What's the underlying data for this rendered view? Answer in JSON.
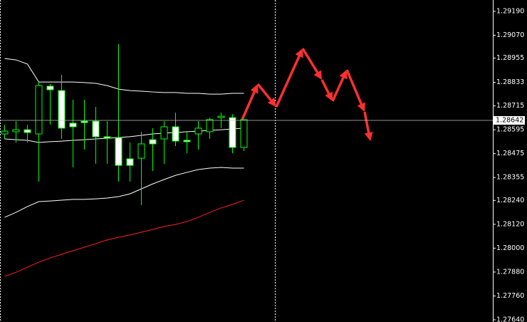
{
  "chart_data": {
    "type": "candlestick",
    "categories": [
      null,
      null,
      null,
      null,
      null,
      null,
      null,
      null,
      null,
      null,
      null,
      null,
      null,
      null,
      null,
      null,
      null,
      null,
      null,
      null,
      null,
      null
    ],
    "open": [
      1.28574,
      1.28585,
      1.28595,
      1.28574,
      1.28814,
      1.28792,
      1.28628,
      1.28638,
      1.28638,
      1.2856,
      1.28556,
      1.28449,
      1.28452,
      1.28545,
      1.28549,
      1.2861,
      1.28542,
      1.28574,
      1.28585,
      1.28656,
      1.28656,
      1.28506
    ],
    "high": [
      1.2862,
      1.28638,
      1.2862,
      1.28835,
      1.28825,
      1.28871,
      1.28746,
      1.28746,
      1.2871,
      1.28638,
      1.29025,
      1.28531,
      1.28585,
      1.28603,
      1.28638,
      1.28681,
      1.28585,
      1.28638,
      1.28656,
      1.28681,
      1.28674,
      1.28646
    ],
    "low": [
      1.28549,
      1.28531,
      1.28531,
      1.28334,
      1.2862,
      1.28549,
      1.28406,
      1.28495,
      1.28424,
      1.28424,
      1.28334,
      1.28334,
      1.28216,
      1.28388,
      1.28424,
      1.28513,
      1.28477,
      1.28495,
      1.28549,
      1.28603,
      1.28477,
      1.28488
    ],
    "close": [
      1.28588,
      1.28595,
      1.28581,
      1.28817,
      1.28796,
      1.28603,
      1.2861,
      1.28631,
      1.2856,
      1.28552,
      1.28416,
      1.28416,
      1.28524,
      1.28524,
      1.2861,
      1.28538,
      1.28535,
      1.28603,
      1.28646,
      1.28663,
      1.28506,
      1.28646
    ],
    "up_color": "#000000",
    "down_color": "#ffffff",
    "wick_color": "#00ff00",
    "overlays": [
      {
        "color": "#ffffff",
        "values": [
          1.28953,
          1.28946,
          1.28925,
          1.28835,
          1.28835,
          1.28835,
          1.28835,
          1.28832,
          1.28828,
          1.28817,
          1.28799,
          1.28792,
          1.28789,
          1.28785,
          1.28782,
          1.28782,
          1.28778,
          1.28778,
          1.28774,
          1.28774,
          1.28778,
          1.28778
        ]
      },
      {
        "color": "#ffffff",
        "values": [
          1.28549,
          1.28545,
          1.28542,
          1.28531,
          1.28535,
          1.28538,
          1.28542,
          1.28545,
          1.28549,
          1.28552,
          1.28556,
          1.2856,
          1.28567,
          1.28574,
          1.28578,
          1.28581,
          1.28585,
          1.28588,
          1.28592,
          1.28595,
          1.28599,
          1.28603
        ]
      },
      {
        "color": "#ffffff",
        "values": [
          1.28155,
          1.2818,
          1.28209,
          1.28234,
          1.28237,
          1.28241,
          1.28245,
          1.28245,
          1.28248,
          1.28252,
          1.28259,
          1.28273,
          1.28298,
          1.28323,
          1.28345,
          1.28366,
          1.28381,
          1.28395,
          1.28402,
          1.28406,
          1.28402,
          1.28402
        ]
      },
      {
        "color": "#ff2020",
        "values": [
          1.27858,
          1.27879,
          1.27904,
          1.2793,
          1.27951,
          1.27969,
          1.27987,
          1.28005,
          1.28023,
          1.28041,
          1.28055,
          1.28066,
          1.2808,
          1.28094,
          1.28109,
          1.28119,
          1.28134,
          1.28155,
          1.2818,
          1.28202,
          1.2822,
          1.28241
        ]
      }
    ],
    "current_price": {
      "value": 1.28642,
      "label": "1.28642"
    },
    "ylim": [
      1.27629,
      1.29247
    ],
    "yticks": [
      {
        "value": 1.2919,
        "label": "1.29190"
      },
      {
        "value": 1.2907,
        "label": "1.29070"
      },
      {
        "value": 1.28955,
        "label": "1.28955"
      },
      {
        "value": 1.28833,
        "label": "1.28833"
      },
      {
        "value": 1.28715,
        "label": "1.28715"
      },
      {
        "value": 1.28595,
        "label": "1.28595"
      },
      {
        "value": 1.28475,
        "label": "1.28475"
      },
      {
        "value": 1.28355,
        "label": "1.28355"
      },
      {
        "value": 1.2824,
        "label": "1.28240"
      },
      {
        "value": 1.2812,
        "label": "1.28120"
      },
      {
        "value": 1.28,
        "label": "1.28000"
      },
      {
        "value": 1.2788,
        "label": "1.27880"
      },
      {
        "value": 1.2776,
        "label": "1.27760"
      },
      {
        "value": 1.2764,
        "label": "1.27640"
      }
    ]
  }
}
